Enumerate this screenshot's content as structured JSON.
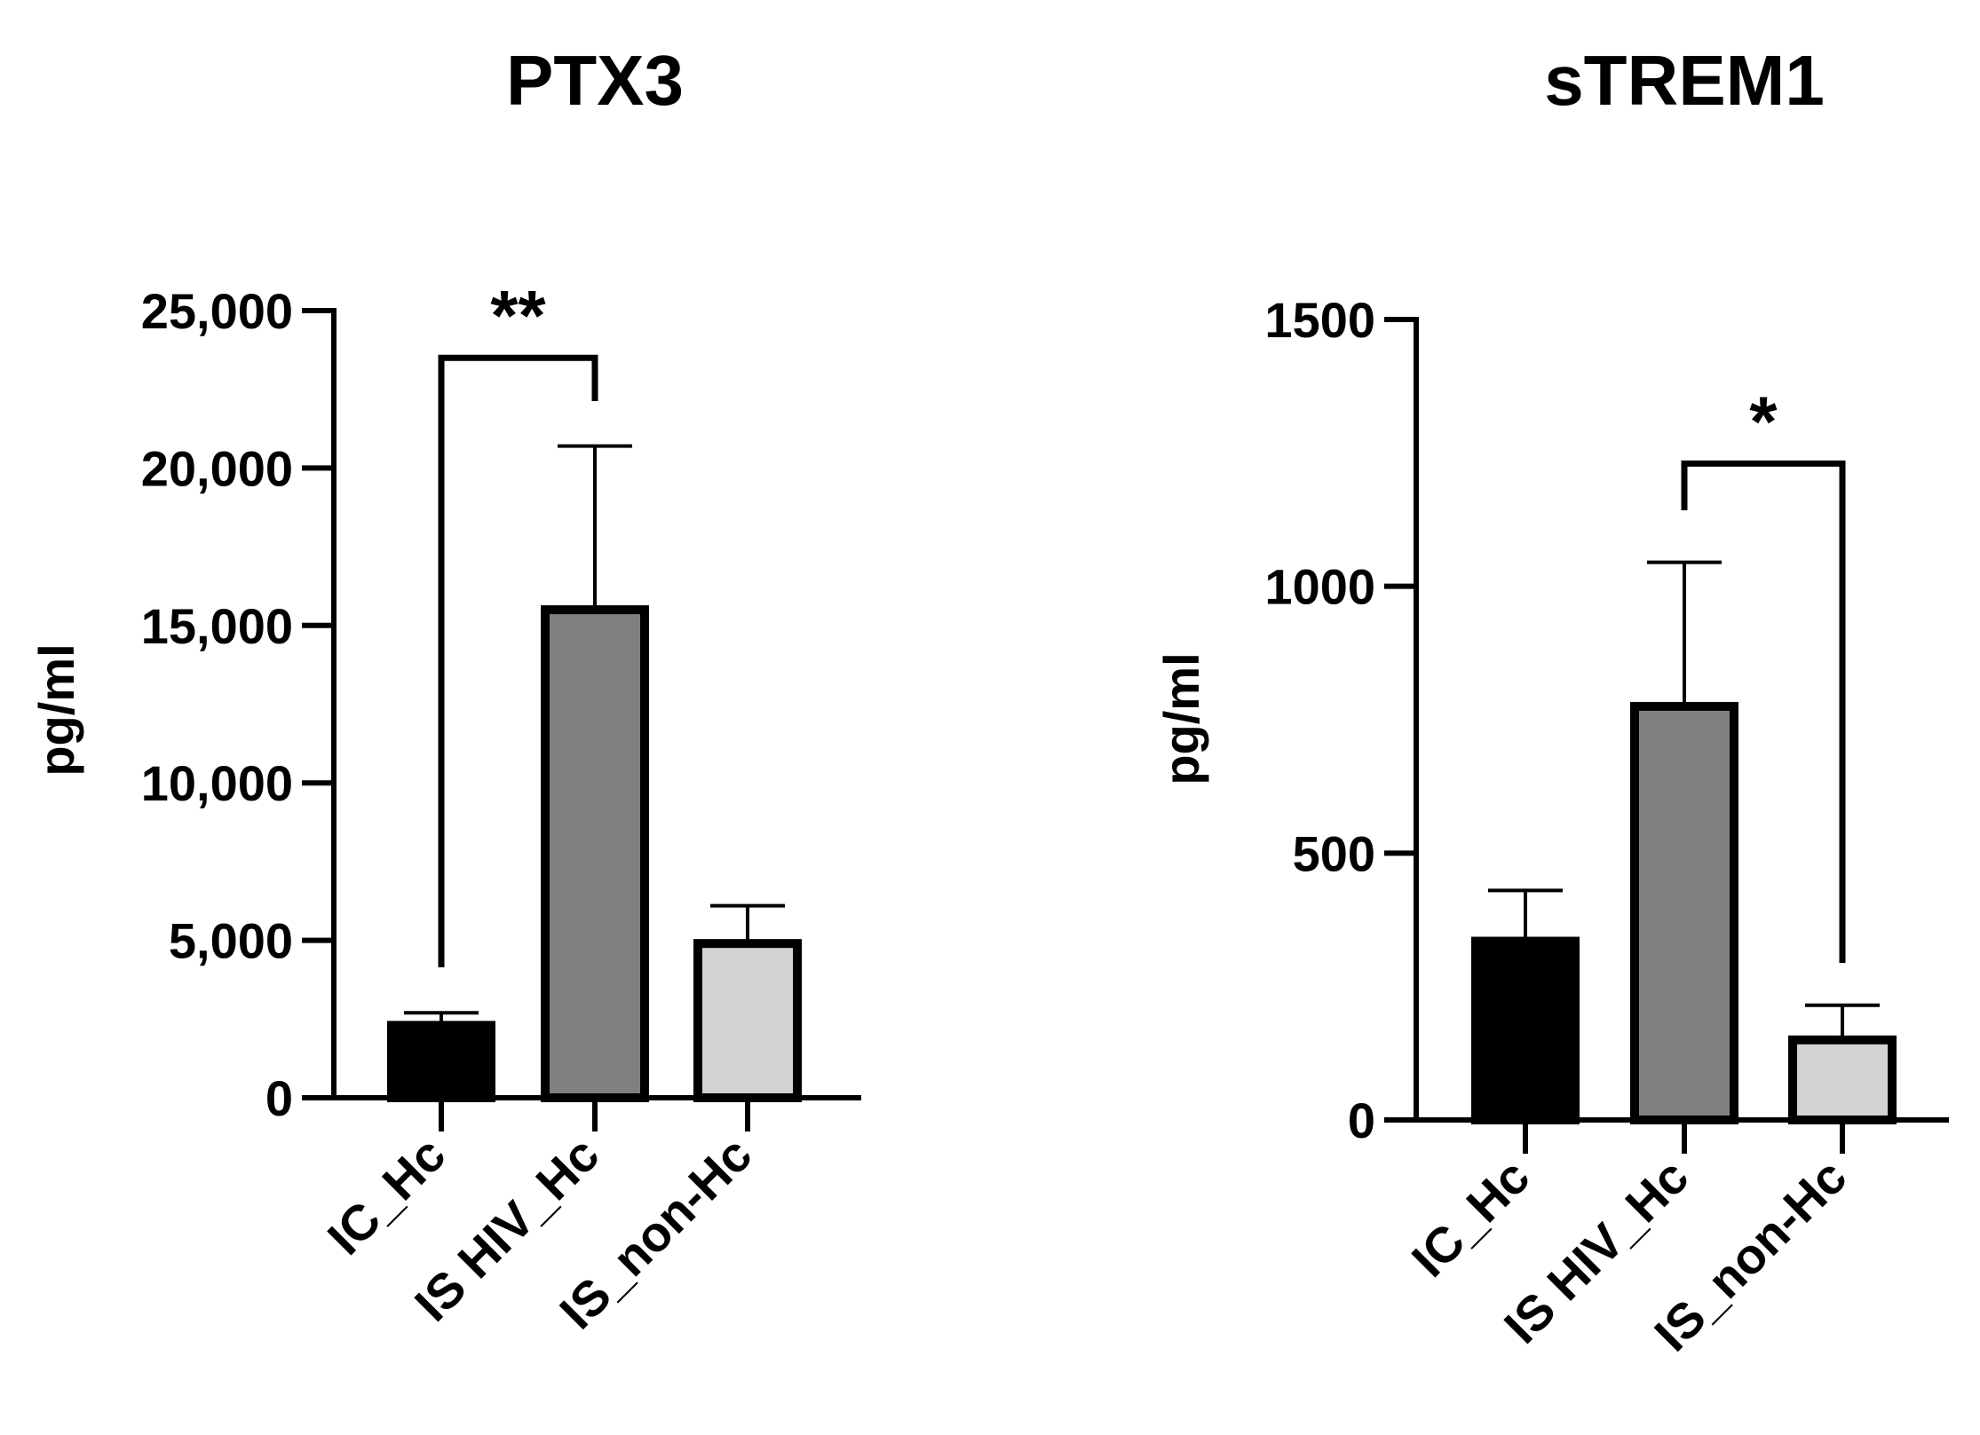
{
  "chart_data": [
    {
      "type": "bar",
      "title": "PTX3",
      "xlabel": "",
      "ylabel": "pg/ml",
      "ylim": [
        0,
        25000
      ],
      "yticks": [
        0,
        5000,
        10000,
        15000,
        20000,
        25000
      ],
      "ytick_labels": [
        "0",
        "5,000",
        "10,000",
        "15,000",
        "20,000",
        "25,000"
      ],
      "categories": [
        "IC_Hc",
        "IS HIV_Hc",
        "IS_non-Hc"
      ],
      "values": [
        2300,
        15500,
        4900
      ],
      "errors": [
        400,
        5200,
        1200
      ],
      "bar_colors": [
        "#000000",
        "#808080",
        "#d3d3d3"
      ],
      "significance": [
        {
          "from": 0,
          "to": 1,
          "label": "**",
          "value": 23500
        }
      ]
    },
    {
      "type": "bar",
      "title": "sTREM1",
      "xlabel": "",
      "ylabel": "pg/ml",
      "ylim": [
        0,
        1500
      ],
      "yticks": [
        0,
        500,
        1000,
        1500
      ],
      "ytick_labels": [
        "0",
        "500",
        "1000",
        "1500"
      ],
      "categories": [
        "IC_Hc",
        "IS HIV_Hc",
        "IS_non-Hc"
      ],
      "values": [
        335,
        775,
        150
      ],
      "errors": [
        95,
        270,
        65
      ],
      "bar_colors": [
        "#000000",
        "#808080",
        "#d3d3d3"
      ],
      "significance": [
        {
          "from": 1,
          "to": 2,
          "label": "*",
          "value": 1230
        }
      ]
    }
  ]
}
